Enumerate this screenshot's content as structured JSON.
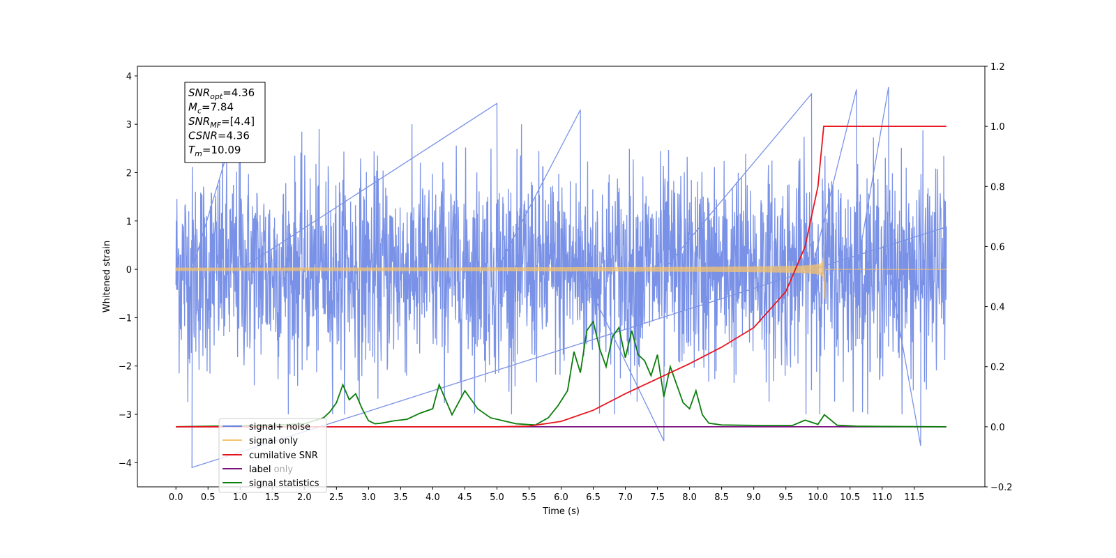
{
  "chart_data": {
    "type": "line",
    "xlabel": "Time (s)",
    "ylabel_left": "Whitened strain",
    "ylabel_right": "",
    "xlim": [
      -0.6,
      12.6
    ],
    "ylim_left": [
      -4.5,
      4.2
    ],
    "ylim_right": [
      -0.2,
      1.2
    ],
    "x_ticks": [
      "0.0",
      "0.5",
      "1.0",
      "1.5",
      "2.0",
      "2.5",
      "3.0",
      "3.5",
      "4.0",
      "4.5",
      "5.0",
      "5.5",
      "6.0",
      "6.5",
      "7.0",
      "7.5",
      "8.0",
      "8.5",
      "9.0",
      "9.5",
      "10.0",
      "10.5",
      "11.0",
      "11.5"
    ],
    "y_ticks_left": [
      "-4",
      "-3",
      "-2",
      "-1",
      "0",
      "1",
      "2",
      "3",
      "4"
    ],
    "y_ticks_right": [
      "-0.2",
      "0.0",
      "0.2",
      "0.4",
      "0.6",
      "0.8",
      "1.0",
      "1.2"
    ],
    "grid": false,
    "legend_position": "lower-left",
    "stats_box": {
      "position": "top-left",
      "lines": [
        {
          "base": "SNR",
          "sub": "opt",
          "value": "=4.36"
        },
        {
          "base": "M",
          "sub": "c",
          "value": "=7.84"
        },
        {
          "base": "SNR",
          "sub": "MF",
          "value": "=[4.4]"
        },
        {
          "base": "CSNR",
          "sub": "",
          "value": "=4.36"
        },
        {
          "base": "T",
          "sub": "m",
          "value": "=10.09"
        }
      ]
    },
    "series": [
      {
        "name": "signal+ noise",
        "color": "#6a85e3",
        "axis": "left",
        "kind": "noise",
        "x_range": [
          0.0,
          12.0
        ],
        "typical_abs_max": 2.3,
        "min": -4.1,
        "max": 3.77,
        "spikes": [
          {
            "x": 0.25,
            "y": -4.1
          },
          {
            "x": 1.0,
            "y": 3.3
          },
          {
            "x": 5.0,
            "y": 3.43
          },
          {
            "x": 6.3,
            "y": 3.3
          },
          {
            "x": 7.6,
            "y": -3.55
          },
          {
            "x": 9.9,
            "y": 3.63
          },
          {
            "x": 10.6,
            "y": 3.72
          },
          {
            "x": 11.1,
            "y": 3.77
          },
          {
            "x": 11.6,
            "y": -3.65
          }
        ]
      },
      {
        "name": "signal only",
        "color": "#f5c36b",
        "axis": "left",
        "kind": "chirp",
        "x_range": [
          0.0,
          12.0
        ],
        "merger_time": 10.09,
        "peak_amplitude": 0.5,
        "min_amplitude_at_merger": -0.62
      },
      {
        "name": "cumilative SNR",
        "color": "#e8141c",
        "axis": "right",
        "x": [
          0.0,
          5.0,
          5.5,
          6.0,
          6.5,
          7.0,
          7.5,
          8.0,
          8.5,
          9.0,
          9.5,
          9.8,
          10.0,
          10.09,
          12.0
        ],
        "values": [
          0.0,
          0.0,
          0.002,
          0.018,
          0.055,
          0.11,
          0.16,
          0.21,
          0.265,
          0.33,
          0.45,
          0.6,
          0.8,
          1.0,
          1.0
        ]
      },
      {
        "name": "label",
        "color": "#7b137f",
        "axis": "right",
        "x": [
          0.0,
          12.0
        ],
        "values": [
          0.0,
          0.0
        ]
      },
      {
        "name": "label only",
        "color": "#7b137f",
        "axis": "right",
        "x": [
          0.0,
          12.0
        ],
        "values": [
          0.0,
          0.0
        ]
      },
      {
        "name": "signal statistics",
        "color": "#0b7d0b",
        "axis": "right",
        "x": [
          0.0,
          1.5,
          2.0,
          2.3,
          2.4,
          2.5,
          2.6,
          2.7,
          2.8,
          2.9,
          3.0,
          3.1,
          3.2,
          3.4,
          3.6,
          3.8,
          4.0,
          4.1,
          4.2,
          4.3,
          4.5,
          4.7,
          4.9,
          5.1,
          5.3,
          5.6,
          5.8,
          5.95,
          6.1,
          6.2,
          6.3,
          6.4,
          6.5,
          6.6,
          6.7,
          6.8,
          6.9,
          7.0,
          7.1,
          7.2,
          7.3,
          7.4,
          7.5,
          7.6,
          7.7,
          7.8,
          7.9,
          8.0,
          8.1,
          8.2,
          8.3,
          8.5,
          8.8,
          9.2,
          9.6,
          9.8,
          10.0,
          10.1,
          10.3,
          10.6,
          11.0,
          12.0
        ],
        "values": [
          0.0,
          0.005,
          0.01,
          0.03,
          0.05,
          0.08,
          0.14,
          0.09,
          0.11,
          0.06,
          0.02,
          0.01,
          0.012,
          0.02,
          0.025,
          0.045,
          0.06,
          0.14,
          0.09,
          0.04,
          0.12,
          0.06,
          0.03,
          0.02,
          0.01,
          0.006,
          0.03,
          0.07,
          0.12,
          0.25,
          0.18,
          0.32,
          0.35,
          0.26,
          0.2,
          0.3,
          0.33,
          0.23,
          0.32,
          0.24,
          0.22,
          0.17,
          0.24,
          0.1,
          0.2,
          0.14,
          0.08,
          0.06,
          0.12,
          0.04,
          0.012,
          0.006,
          0.005,
          0.004,
          0.004,
          0.022,
          0.008,
          0.04,
          0.005,
          0.002,
          0.001,
          0.0
        ]
      }
    ]
  }
}
